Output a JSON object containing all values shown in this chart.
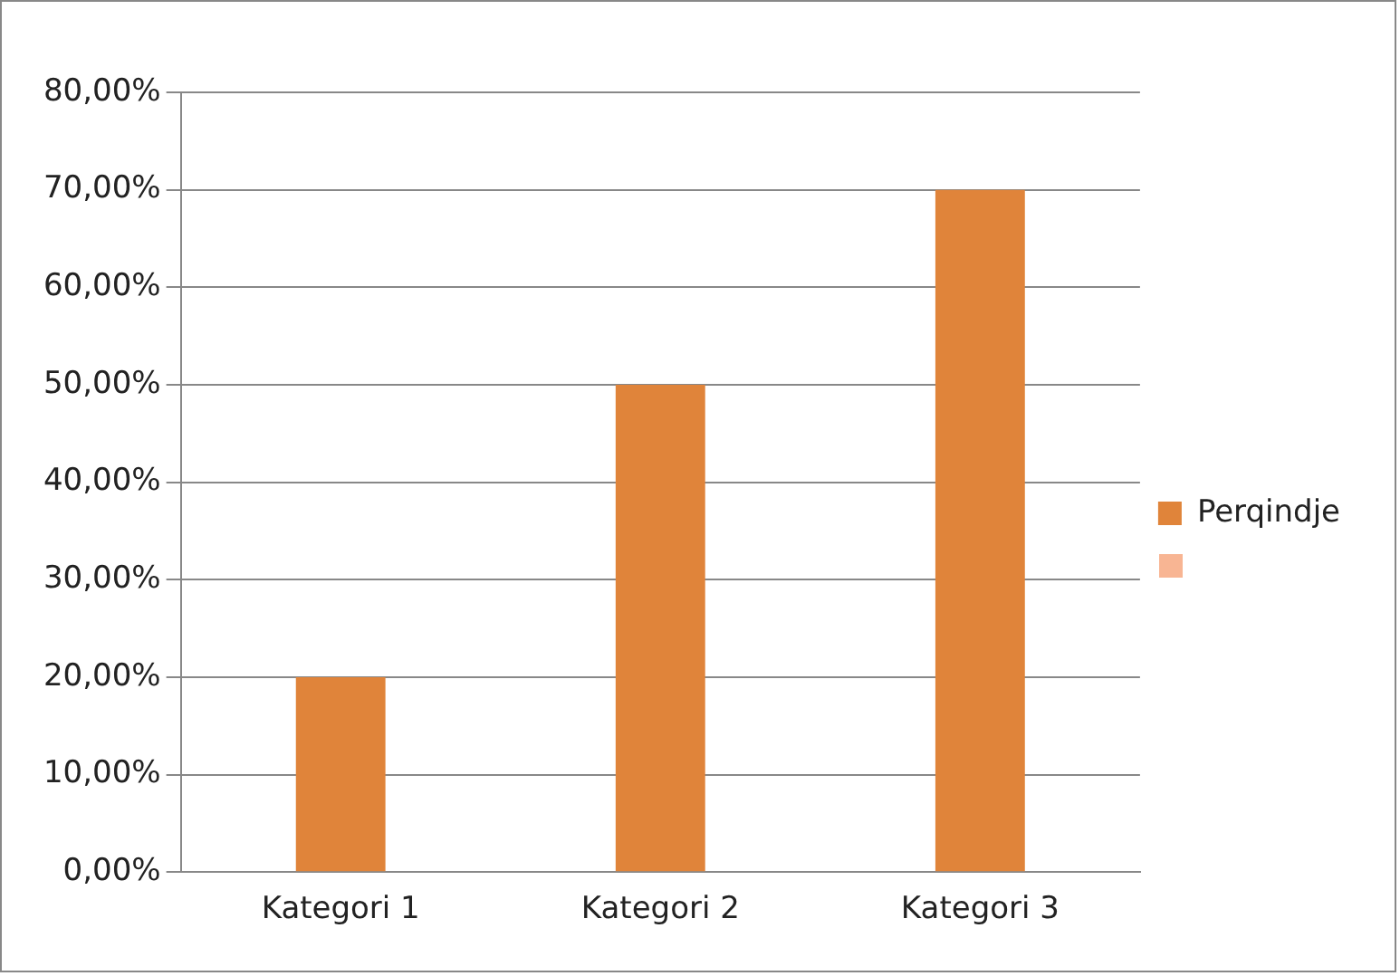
{
  "chart_data": {
    "type": "bar",
    "categories": [
      "Kategori 1",
      "Kategori 2",
      "Kategori 3"
    ],
    "series": [
      {
        "name": "Perqindje",
        "color": "#e0843a",
        "values": [
          20,
          50,
          70
        ]
      }
    ],
    "ylim": [
      0,
      80
    ],
    "yticks": [
      {
        "value": 0,
        "label": "0,00%"
      },
      {
        "value": 10,
        "label": "10,00%"
      },
      {
        "value": 20,
        "label": "20,00%"
      },
      {
        "value": 30,
        "label": "30,00%"
      },
      {
        "value": 40,
        "label": "40,00%"
      },
      {
        "value": 50,
        "label": "50,00%"
      },
      {
        "value": 60,
        "label": "60,00%"
      },
      {
        "value": 70,
        "label": "70,00%"
      },
      {
        "value": 80,
        "label": "80,00%"
      }
    ],
    "grid": "y",
    "legend": "right"
  }
}
